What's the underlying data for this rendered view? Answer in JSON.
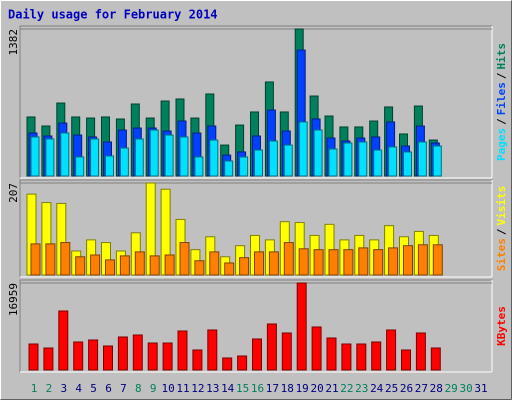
{
  "title": "Daily usage for February 2014",
  "separator": "/",
  "weekend_days": [
    0,
    1,
    7,
    8,
    14,
    15,
    21,
    22,
    28,
    29
  ],
  "weekend_label_color": "#00805c",
  "label_color": "#000080",
  "chart_data": [
    {
      "type": "bar",
      "ylim": [
        0,
        1382
      ],
      "yticks": [
        1382
      ],
      "series": [
        {
          "name": "Hits",
          "color": "#00805c",
          "values": [
            555,
            470,
            686,
            555,
            545,
            555,
            536,
            677,
            545,
            705,
            724,
            545,
            771,
            291,
            479,
            602,
            884,
            602,
            1382,
            752,
            564,
            461,
            461,
            517,
            649,
            395,
            658,
            338,
            null,
            null,
            null
          ]
        },
        {
          "name": "Files",
          "color": "#0040ff",
          "values": [
            404,
            376,
            498,
            385,
            367,
            320,
            432,
            451,
            451,
            423,
            517,
            404,
            470,
            197,
            226,
            376,
            620,
            423,
            1184,
            536,
            357,
            329,
            357,
            367,
            508,
            282,
            470,
            310,
            null,
            null,
            null
          ]
        },
        {
          "name": "Pages",
          "color": "#00e0ff",
          "values": [
            367,
            348,
            404,
            179,
            348,
            188,
            263,
            348,
            432,
            385,
            367,
            179,
            338,
            141,
            179,
            244,
            329,
            291,
            508,
            432,
            254,
            310,
            320,
            244,
            273,
            226,
            320,
            282,
            null,
            null,
            null
          ]
        }
      ]
    },
    {
      "type": "bar",
      "ylim": [
        0,
        207
      ],
      "yticks": [
        207
      ],
      "series": [
        {
          "name": "Visits",
          "color": "#ffff00",
          "values": [
            182,
            163,
            161,
            54,
            79,
            73,
            54,
            95,
            207,
            193,
            125,
            57,
            86,
            41,
            66,
            89,
            79,
            120,
            118,
            89,
            114,
            79,
            89,
            79,
            111,
            86,
            98,
            89,
            null,
            null,
            null
          ]
        },
        {
          "name": "Sites",
          "color": "#ff8000",
          "values": [
            70,
            70,
            73,
            41,
            45,
            34,
            43,
            52,
            43,
            45,
            73,
            32,
            52,
            27,
            39,
            52,
            52,
            73,
            59,
            57,
            57,
            57,
            61,
            57,
            61,
            66,
            68,
            68,
            null,
            null,
            null
          ]
        }
      ]
    },
    {
      "type": "bar",
      "ylim": [
        0,
        16959
      ],
      "yticks": [
        16959
      ],
      "categories": [
        "1",
        "2",
        "3",
        "4",
        "5",
        "6",
        "7",
        "8",
        "9",
        "10",
        "11",
        "12",
        "13",
        "14",
        "15",
        "16",
        "17",
        "18",
        "19",
        "20",
        "21",
        "22",
        "23",
        "24",
        "25",
        "26",
        "27",
        "28",
        "29",
        "30",
        "31"
      ],
      "series": [
        {
          "name": "KBytes",
          "color": "#ff0000",
          "values": [
            5070,
            4290,
            11500,
            5460,
            5850,
            4680,
            6435,
            6825,
            5265,
            5265,
            7605,
            3900,
            7800,
            2340,
            2730,
            6045,
            8970,
            7215,
            16959,
            8385,
            6240,
            5070,
            5070,
            5460,
            7800,
            3900,
            7215,
            4290,
            null,
            null,
            null
          ]
        }
      ]
    }
  ]
}
